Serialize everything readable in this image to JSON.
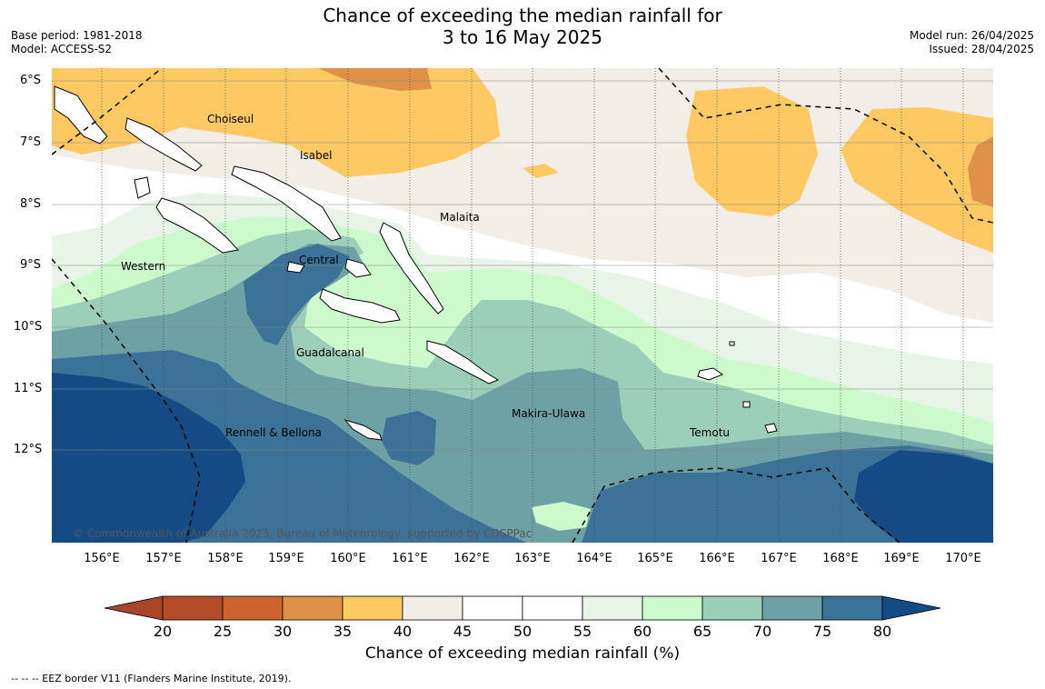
{
  "title_line1": "Chance of exceeding the median rainfall for",
  "title_line2": "3 to 16 May 2025",
  "meta_left": [
    "Base period: 1981-2018",
    "Model: ACCESS-S2"
  ],
  "meta_right": [
    "Model run: 26/04/2025",
    "Issued: 28/04/2025"
  ],
  "lat_labels": [
    "6°S",
    "7°S",
    "8°S",
    "9°S",
    "10°S",
    "11°S",
    "12°S"
  ],
  "lon_labels": [
    "156°E",
    "157°E",
    "158°E",
    "159°E",
    "160°E",
    "161°E",
    "162°E",
    "163°E",
    "164°E",
    "165°E",
    "166°E",
    "167°E",
    "168°E",
    "169°E",
    "170°E"
  ],
  "places": [
    "Choiseul",
    "Isabel",
    "Malaita",
    "Western",
    "Central",
    "Guadalcanal",
    "Makira-Ulawa",
    "Rennell & Bellona",
    "Temotu"
  ],
  "copyright": "© Commonwealth of Australia 2025, Bureau of Meteorology, supported by COSPPac",
  "colorbar": {
    "ticks": [
      "20",
      "25",
      "30",
      "35",
      "40",
      "45",
      "50",
      "55",
      "60",
      "65",
      "70",
      "75",
      "80"
    ],
    "colors": [
      "#a9462a",
      "#b44b27",
      "#cd632f",
      "#e09148",
      "#fec963",
      "#f2ede7",
      "#ffffff",
      "#ffffff",
      "#e8f4e8",
      "#ccfacc",
      "#9ccfb9",
      "#6ea1a5",
      "#3c7298",
      "#154b85"
    ],
    "title": "Chance of exceeding median rainfall (%)"
  },
  "footer": "--  --  -- EEZ border V11 (Flanders Marine Institute, 2019).",
  "map_extent": {
    "lon_min": 155.25,
    "lon_max": 170.5,
    "lat_min": -13.5,
    "lat_max": -5.8
  }
}
